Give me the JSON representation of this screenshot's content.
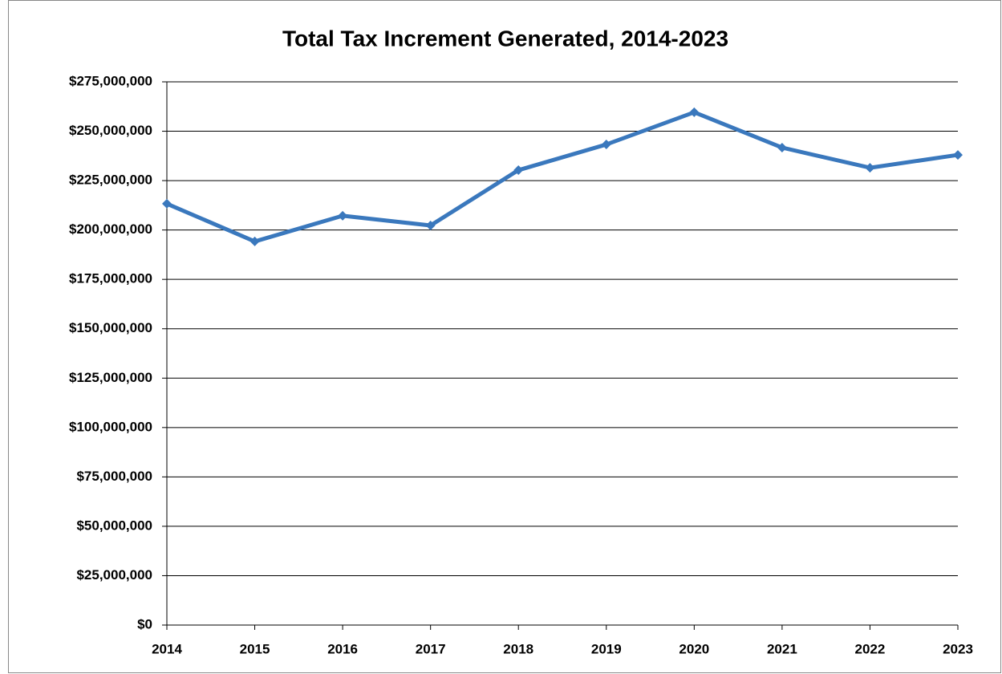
{
  "chart_data": {
    "type": "line",
    "title": "Total Tax Increment Generated, 2014-2023",
    "categories": [
      "2014",
      "2015",
      "2016",
      "2017",
      "2018",
      "2019",
      "2020",
      "2021",
      "2022",
      "2023"
    ],
    "series": [
      {
        "name": "Total Tax Increment",
        "color": "#3a78bd",
        "values": [
          213300000,
          194200000,
          207200000,
          202300000,
          230300000,
          243300000,
          259600000,
          241700000,
          231500000,
          238000000
        ]
      }
    ],
    "ylim": [
      0,
      275000000
    ],
    "yticks": [
      {
        "value": 0,
        "label": "$0"
      },
      {
        "value": 25000000,
        "label": "$25,000,000"
      },
      {
        "value": 50000000,
        "label": "$50,000,000"
      },
      {
        "value": 75000000,
        "label": "$75,000,000"
      },
      {
        "value": 100000000,
        "label": "$100,000,000"
      },
      {
        "value": 125000000,
        "label": "$125,000,000"
      },
      {
        "value": 150000000,
        "label": "$150,000,000"
      },
      {
        "value": 175000000,
        "label": "$175,000,000"
      },
      {
        "value": 200000000,
        "label": "$200,000,000"
      },
      {
        "value": 225000000,
        "label": "$225,000,000"
      },
      {
        "value": 250000000,
        "label": "$250,000,000"
      },
      {
        "value": 275000000,
        "label": "$275,000,000"
      }
    ],
    "grid": true
  }
}
